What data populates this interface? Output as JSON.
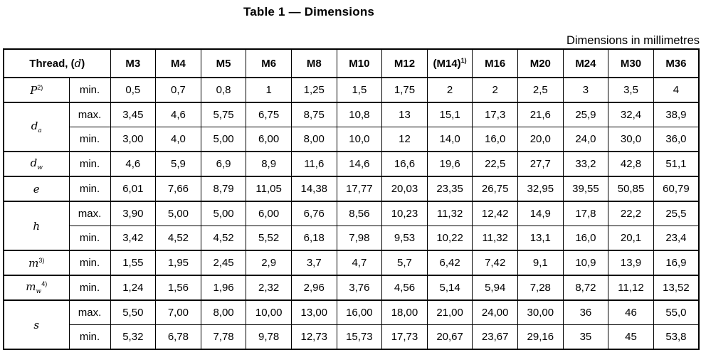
{
  "page": {
    "title": "Table 1 — Dimensions",
    "units_note": "Dimensions in millimetres"
  },
  "colors": {
    "ink": "#000000",
    "paper": "#ffffff"
  },
  "table": {
    "header": {
      "thread_prefix": "Thread, (",
      "thread_symbol": "d",
      "thread_suffix": ")",
      "sizes": [
        {
          "label": "M3",
          "sup": ""
        },
        {
          "label": "M4",
          "sup": ""
        },
        {
          "label": "M5",
          "sup": ""
        },
        {
          "label": "M6",
          "sup": ""
        },
        {
          "label": "M8",
          "sup": ""
        },
        {
          "label": "M10",
          "sup": ""
        },
        {
          "label": "M12",
          "sup": ""
        },
        {
          "label": "(M14)",
          "sup": "1)"
        },
        {
          "label": "M16",
          "sup": ""
        },
        {
          "label": "M20",
          "sup": ""
        },
        {
          "label": "M24",
          "sup": ""
        },
        {
          "label": "M30",
          "sup": ""
        },
        {
          "label": "M36",
          "sup": ""
        }
      ]
    },
    "rows": [
      {
        "symbol": "P",
        "sub": "",
        "sup": "2)",
        "entries": [
          {
            "limit": "min.",
            "values": [
              "0,5",
              "0,7",
              "0,8",
              "1",
              "1,25",
              "1,5",
              "1,75",
              "2",
              "2",
              "2,5",
              "3",
              "3,5",
              "4"
            ]
          }
        ]
      },
      {
        "symbol": "d",
        "sub": "a",
        "sup": "",
        "entries": [
          {
            "limit": "max.",
            "values": [
              "3,45",
              "4,6",
              "5,75",
              "6,75",
              "8,75",
              "10,8",
              "13",
              "15,1",
              "17,3",
              "21,6",
              "25,9",
              "32,4",
              "38,9"
            ]
          },
          {
            "limit": "min.",
            "values": [
              "3,00",
              "4,0",
              "5,00",
              "6,00",
              "8,00",
              "10,0",
              "12",
              "14,0",
              "16,0",
              "20,0",
              "24,0",
              "30,0",
              "36,0"
            ]
          }
        ]
      },
      {
        "symbol": "d",
        "sub": "w",
        "sup": "",
        "entries": [
          {
            "limit": "min.",
            "values": [
              "4,6",
              "5,9",
              "6,9",
              "8,9",
              "11,6",
              "14,6",
              "16,6",
              "19,6",
              "22,5",
              "27,7",
              "33,2",
              "42,8",
              "51,1"
            ]
          }
        ]
      },
      {
        "symbol": "e",
        "sub": "",
        "sup": "",
        "entries": [
          {
            "limit": "min.",
            "values": [
              "6,01",
              "7,66",
              "8,79",
              "11,05",
              "14,38",
              "17,77",
              "20,03",
              "23,35",
              "26,75",
              "32,95",
              "39,55",
              "50,85",
              "60,79"
            ]
          }
        ]
      },
      {
        "symbol": "h",
        "sub": "",
        "sup": "",
        "entries": [
          {
            "limit": "max.",
            "values": [
              "3,90",
              "5,00",
              "5,00",
              "6,00",
              "6,76",
              "8,56",
              "10,23",
              "11,32",
              "12,42",
              "14,9",
              "17,8",
              "22,2",
              "25,5"
            ]
          },
          {
            "limit": "min.",
            "values": [
              "3,42",
              "4,52",
              "4,52",
              "5,52",
              "6,18",
              "7,98",
              "9,53",
              "10,22",
              "11,32",
              "13,1",
              "16,0",
              "20,1",
              "23,4"
            ]
          }
        ]
      },
      {
        "symbol": "m",
        "sub": "",
        "sup": "3)",
        "entries": [
          {
            "limit": "min.",
            "values": [
              "1,55",
              "1,95",
              "2,45",
              "2,9",
              "3,7",
              "4,7",
              "5,7",
              "6,42",
              "7,42",
              "9,1",
              "10,9",
              "13,9",
              "16,9"
            ]
          }
        ]
      },
      {
        "symbol": "m",
        "sub": "w",
        "sup": "4)",
        "entries": [
          {
            "limit": "min.",
            "values": [
              "1,24",
              "1,56",
              "1,96",
              "2,32",
              "2,96",
              "3,76",
              "4,56",
              "5,14",
              "5,94",
              "7,28",
              "8,72",
              "11,12",
              "13,52"
            ]
          }
        ]
      },
      {
        "symbol": "s",
        "sub": "",
        "sup": "",
        "entries": [
          {
            "limit": "max.",
            "values": [
              "5,50",
              "7,00",
              "8,00",
              "10,00",
              "13,00",
              "16,00",
              "18,00",
              "21,00",
              "24,00",
              "30,00",
              "36",
              "46",
              "55,0"
            ]
          },
          {
            "limit": "min.",
            "values": [
              "5,32",
              "6,78",
              "7,78",
              "9,78",
              "12,73",
              "15,73",
              "17,73",
              "20,67",
              "23,67",
              "29,16",
              "35",
              "45",
              "53,8"
            ]
          }
        ]
      }
    ]
  }
}
